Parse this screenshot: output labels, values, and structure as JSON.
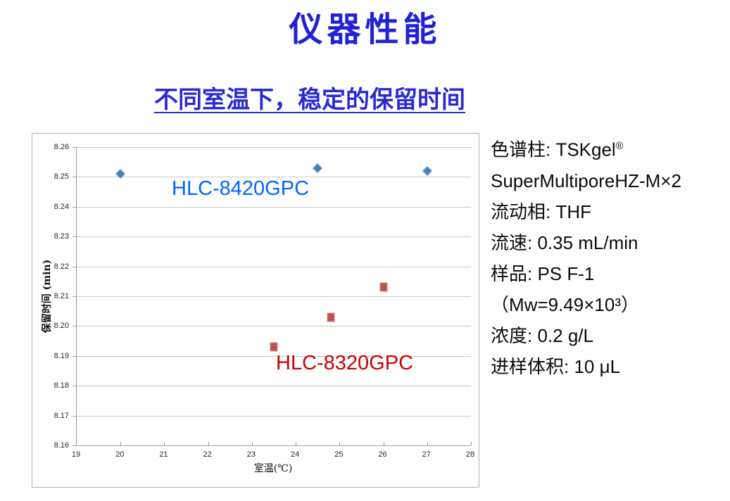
{
  "slide": {
    "title": "仪器性能",
    "subtitle": "不同室温下，稳定的保留时间"
  },
  "conditions": {
    "lines": [
      "色谱柱: TSKgel®",
      "SuperMultiporeHZ-M×2",
      "流动相: THF",
      "流速: 0.35 mL/min",
      "样品: PS F-1",
      "（Mw=9.49×10³）",
      "浓度: 0.2 g/L",
      "进样体积: 10 μL"
    ]
  },
  "chart_data": {
    "type": "scatter",
    "title": "",
    "xlabel": "室温(℃)",
    "ylabel": "保留时间 (min)",
    "xlim": [
      19,
      28
    ],
    "ylim": [
      8.16,
      8.26
    ],
    "x_ticks": [
      19,
      20,
      21,
      22,
      23,
      24,
      25,
      26,
      27,
      28
    ],
    "y_ticks": [
      "8.16",
      "8.17",
      "8.18",
      "8.19",
      "8.20",
      "8.21",
      "8.22",
      "8.23",
      "8.24",
      "8.25",
      "8.26"
    ],
    "grid": true,
    "legend_position": "inline-text-labels",
    "series": [
      {
        "name": "HLC-8420GPC",
        "marker": "diamond",
        "marker_color": "#4a7ebb",
        "marker_border": "#86a8d8",
        "label_color": "#0066ff",
        "points": [
          [
            20,
            8.251
          ],
          [
            24.5,
            8.253
          ],
          [
            27,
            8.252
          ]
        ]
      },
      {
        "name": "HLC-8320GPC",
        "marker": "square",
        "marker_color": "#c0504d",
        "marker_border": "#d28e8c",
        "label_color": "#cc0000",
        "points": [
          [
            23.5,
            8.193
          ],
          [
            24.8,
            8.203
          ],
          [
            26,
            8.213
          ]
        ]
      }
    ]
  },
  "colors": {
    "heading_blue": "#2222d5",
    "gridline": "#c9c9c9",
    "axis_line": "#9e9e9e",
    "chart_border": "#b0b0b0"
  }
}
